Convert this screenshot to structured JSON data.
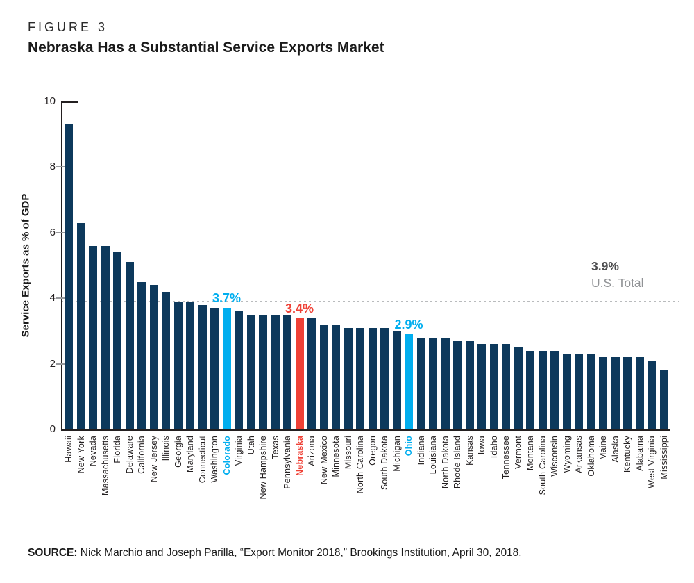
{
  "figure_label": "FIGURE 3",
  "title": "Nebraska Has a Substantial Service Exports Market",
  "source": {
    "prefix": "SOURCE:",
    "text": " Nick Marchio and Joseph Parilla, “Export Monitor 2018,” Brookings Institution, April 30, 2018."
  },
  "colors": {
    "navy": "#0D395C",
    "highlight_blue": "#00AEEF",
    "highlight_red": "#EF4136",
    "axis": "#231F20",
    "tick_gray": "#97999C",
    "ref_line_gray": "#B9BBBD",
    "ref_label_dark": "#4D4D4F",
    "ref_label_light": "#909295"
  },
  "chart_data": {
    "type": "bar",
    "title": "Nebraska Has a Substantial Service Exports Market",
    "xlabel": "",
    "ylabel": "Service Exports as % of GDP",
    "ylim": [
      0,
      10
    ],
    "yticks": [
      0,
      2,
      4,
      6,
      8,
      10
    ],
    "grid": "none",
    "legend": "none",
    "reference_line": {
      "value": 3.9,
      "label_value": "3.9%",
      "label_text": "U.S. Total",
      "style": "dashed"
    },
    "categories": [
      "Hawaii",
      "New York",
      "Nevada",
      "Massachusetts",
      "Florida",
      "Delaware",
      "California",
      "New Jersey",
      "Illinois",
      "Georgia",
      "Maryland",
      "Connecticut",
      "Washington",
      "Colorado",
      "Virginia",
      "Utah",
      "New Hampshire",
      "Texas",
      "Pennsylvania",
      "Nebraska",
      "Arizona",
      "New Mexico",
      "Minnesota",
      "Missouri",
      "North Carolina",
      "Oregon",
      "South Dakota",
      "Michigan",
      "Ohio",
      "Indiana",
      "Louisiana",
      "North Dakota",
      "Rhode Island",
      "Kansas",
      "Iowa",
      "Idaho",
      "Tennessee",
      "Vermont",
      "Montana",
      "South Carolina",
      "Wisconsin",
      "Wyoming",
      "Arkansas",
      "Oklahoma",
      "Maine",
      "Alaska",
      "Kentucky",
      "Alabama",
      "West Virginia",
      "Mississippi"
    ],
    "values": [
      9.3,
      6.3,
      5.6,
      5.6,
      5.4,
      5.1,
      4.5,
      4.4,
      4.2,
      3.9,
      3.9,
      3.8,
      3.7,
      3.7,
      3.6,
      3.5,
      3.5,
      3.5,
      3.5,
      3.4,
      3.4,
      3.2,
      3.2,
      3.1,
      3.1,
      3.1,
      3.1,
      3.0,
      2.9,
      2.8,
      2.8,
      2.8,
      2.7,
      2.7,
      2.6,
      2.6,
      2.6,
      2.5,
      2.4,
      2.4,
      2.4,
      2.3,
      2.3,
      2.3,
      2.2,
      2.2,
      2.2,
      2.2,
      2.1,
      1.8
    ],
    "highlights": [
      {
        "state": "Colorado",
        "index": 13,
        "color": "#00AEEF",
        "annotation": "3.7%"
      },
      {
        "state": "Nebraska",
        "index": 19,
        "color": "#EF4136",
        "annotation": "3.4%"
      },
      {
        "state": "Ohio",
        "index": 28,
        "color": "#00AEEF",
        "annotation": "2.9%"
      }
    ]
  }
}
